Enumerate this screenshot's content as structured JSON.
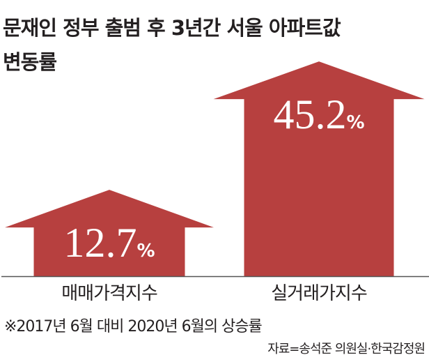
{
  "title_line1": "문재인 정부 출범 후 3년간 서울 아파트값",
  "title_line2": "변동률",
  "chart_data": {
    "type": "bar",
    "title": "문재인 정부 출범 후 3년간 서울 아파트값 변동률",
    "categories": [
      "매매가격지수",
      "실거래가지수"
    ],
    "values": [
      12.7,
      45.2
    ],
    "value_labels": [
      "12.7",
      "45.2"
    ],
    "unit": "%",
    "xlabel": "",
    "ylabel": "",
    "bar_color": "#b7403f"
  },
  "footnote": "※2017년 6월 대비 2020년 6월의 상승률",
  "source": "자료=송석준 의원실·한국감정원"
}
